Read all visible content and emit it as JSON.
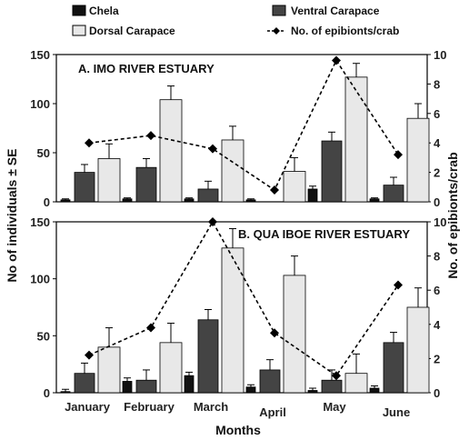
{
  "chart_data": {
    "type": "bar",
    "categories": [
      "January",
      "February",
      "March",
      "April",
      "May",
      "June"
    ],
    "xlabel": "Months",
    "ylabel": "No of individuals ± SE",
    "ylabel_right": "No. of epibionts/crab",
    "ylim": [
      0,
      150
    ],
    "ylim_right": [
      0,
      10
    ],
    "yticks": [
      0,
      50,
      100,
      150
    ],
    "yticks_right": [
      0,
      2,
      4,
      6,
      8,
      10
    ],
    "legend": {
      "placement": "top",
      "entries": [
        {
          "name": "Chela",
          "color": "#111111",
          "kind": "bar"
        },
        {
          "name": "Ventral  Carapace",
          "color": "#444444",
          "kind": "bar"
        },
        {
          "name": "Dorsal Carapace",
          "color": "#e8e8e8",
          "kind": "bar"
        },
        {
          "name": "No. of epibionts/crab",
          "color": "#111111",
          "kind": "line"
        }
      ]
    },
    "panels": [
      {
        "title": "A. IMO RIVER ESTUARY",
        "bars": {
          "Chela": {
            "values": [
              2,
              3,
              3,
              2,
              13,
              3
            ],
            "errors": [
              1,
              1,
              1,
              1,
              3,
              1
            ]
          },
          "Ventral Carapace": {
            "values": [
              30,
              35,
              13,
              0,
              62,
              17
            ],
            "errors": [
              8,
              9,
              8,
              0,
              9,
              8
            ]
          },
          "Dorsal Carapace": {
            "values": [
              44,
              104,
              63,
              31,
              127,
              85
            ],
            "errors": [
              15,
              14,
              14,
              14,
              14,
              15
            ]
          }
        },
        "line": {
          "name": "No. of epibionts/crab",
          "values": [
            4.0,
            4.5,
            3.6,
            0.8,
            9.6,
            3.2
          ]
        }
      },
      {
        "title": "B. QUA IBOE RIVER ESTUARY",
        "bars": {
          "Chela": {
            "values": [
              1,
              10,
              15,
              5,
              2,
              4
            ],
            "errors": [
              2,
              3,
              3,
              2,
              2,
              2
            ]
          },
          "Ventral Carapace": {
            "values": [
              17,
              11,
              64,
              20,
              11,
              44
            ],
            "errors": [
              9,
              9,
              9,
              9,
              9,
              9
            ]
          },
          "Dorsal Carapace": {
            "values": [
              40,
              44,
              127,
              103,
              17,
              75
            ],
            "errors": [
              17,
              17,
              17,
              17,
              17,
              17
            ]
          }
        },
        "line": {
          "name": "No. of epibionts/crab",
          "values": [
            2.2,
            3.8,
            10.0,
            3.5,
            1.0,
            6.3
          ]
        }
      }
    ]
  }
}
